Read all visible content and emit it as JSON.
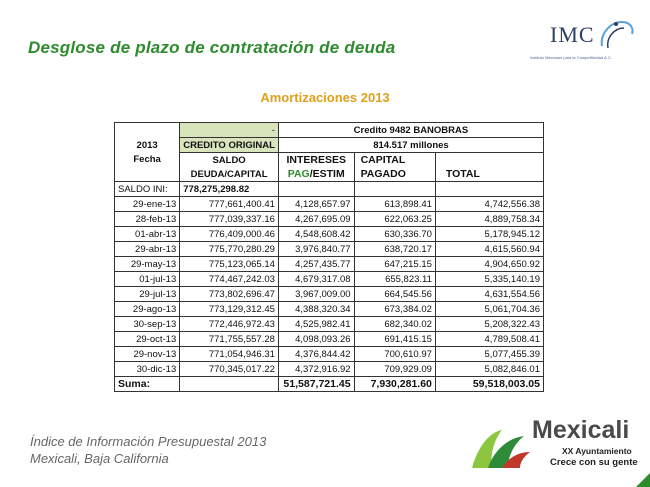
{
  "page": {
    "title": "Desglose  de plazo de contratación  de deuda",
    "subtitle": "Amortizaciones 2013"
  },
  "logos": {
    "imco_word": "IMC",
    "imco_tagline": "Instituto Mexicano para la Competitividad A.C.",
    "mexicali_word": "Mexicali",
    "mexicali_ayuntamiento": "XX Ayuntamiento",
    "mexicali_slogan": "Crece con su gente"
  },
  "table": {
    "header": {
      "dash": "-",
      "credito": "Credito 9482 BANOBRAS",
      "year": "2013",
      "credito_original": "CREDITO ORIGINAL",
      "millones": "814.517 millones",
      "fecha": "Fecha",
      "saldo": "SALDO",
      "intereses": "INTERESES",
      "capital": "CAPITAL",
      "deuda_capital": "DEUDA/CAPITAL",
      "pag": "PAG",
      "estim": "/ESTIM",
      "pagado": "PAGADO",
      "total": "TOTAL"
    },
    "saldo_ini_label": "SALDO INI:",
    "saldo_ini_value": "778,275,298.82",
    "rows": [
      {
        "fecha": "29-ene-13",
        "saldo": "777,661,400.41",
        "intereses": "4,128,657.97",
        "capital": "613,898.41",
        "total": "4,742,556.38"
      },
      {
        "fecha": "28-feb-13",
        "saldo": "777,039,337.16",
        "intereses": "4,267,695.09",
        "capital": "622,063.25",
        "total": "4,889,758.34"
      },
      {
        "fecha": "01-abr-13",
        "saldo": "776,409,000.46",
        "intereses": "4,548,608.42",
        "capital": "630,336.70",
        "total": "5,178,945.12"
      },
      {
        "fecha": "29-abr-13",
        "saldo": "775,770,280.29",
        "intereses": "3,976,840.77",
        "capital": "638,720.17",
        "total": "4,615,560.94"
      },
      {
        "fecha": "29-may-13",
        "saldo": "775,123,065.14",
        "intereses": "4,257,435.77",
        "capital": "647,215.15",
        "total": "4,904,650.92"
      },
      {
        "fecha": "01-jul-13",
        "saldo": "774,467,242.03",
        "intereses": "4,679,317.08",
        "capital": "655,823.11",
        "total": "5,335,140.19"
      },
      {
        "fecha": "29-jul-13",
        "saldo": "773,802,696.47",
        "intereses": "3,967,009.00",
        "capital": "664,545.56",
        "total": "4,631,554.56"
      },
      {
        "fecha": "29-ago-13",
        "saldo": "773,129,312.45",
        "intereses": "4,388,320.34",
        "capital": "673,384.02",
        "total": "5,061,704.36"
      },
      {
        "fecha": "30-sep-13",
        "saldo": "772,446,972.43",
        "intereses": "4,525,982.41",
        "capital": "682,340.02",
        "total": "5,208,322.43"
      },
      {
        "fecha": "29-oct-13",
        "saldo": "771,755,557.28",
        "intereses": "4,098,093.26",
        "capital": "691,415.15",
        "total": "4,789,508.41"
      },
      {
        "fecha": "29-nov-13",
        "saldo": "771,054,946.31",
        "intereses": "4,376,844.42",
        "capital": "700,610.97",
        "total": "5,077,455.39"
      },
      {
        "fecha": "30-dic-13",
        "saldo": "770,345,017.22",
        "intereses": "4,372,916.92",
        "capital": "709,929.09",
        "total": "5,082,846.01"
      }
    ],
    "suma": {
      "label": "Suma:",
      "intereses": "51,587,721.45",
      "capital": "7,930,281.60",
      "total": "59,518,003.05"
    }
  },
  "footer": {
    "line1": "Índice de Información Presupuestal 2013",
    "line2": "Mexicali, Baja California"
  },
  "colors": {
    "title_green": "#2e8b2e",
    "subtitle_orange": "#e1a01a",
    "header_fill": "#d8e4bc",
    "imco_navy": "#2d3f66"
  }
}
